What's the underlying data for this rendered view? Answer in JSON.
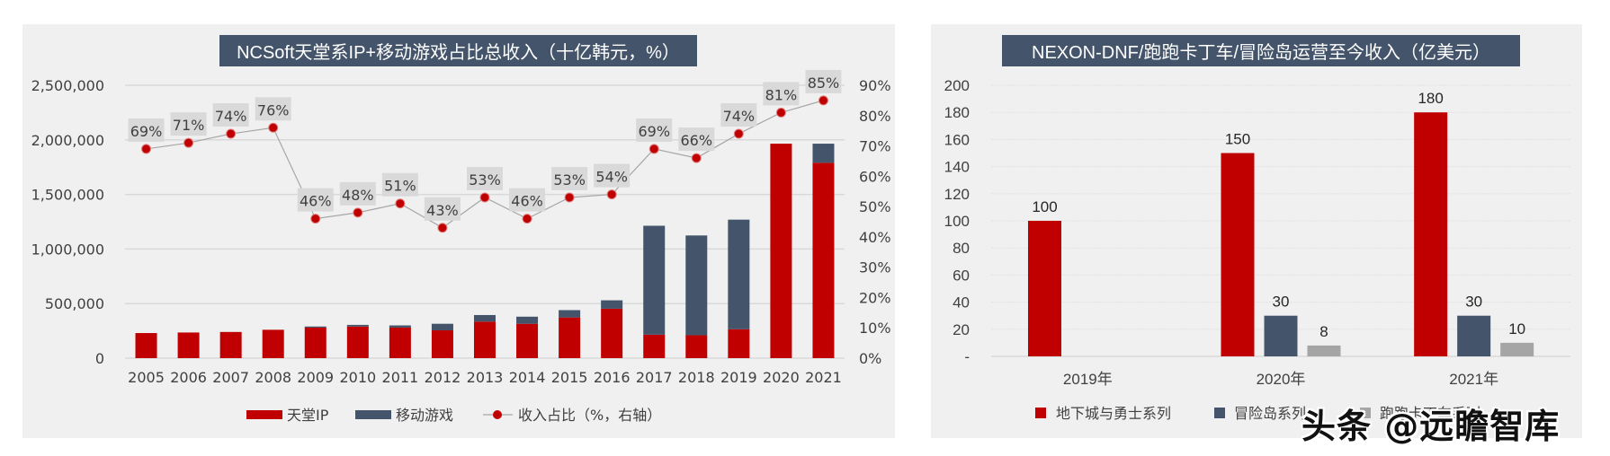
{
  "chart_data": [
    {
      "type": "bar",
      "stacked": true,
      "title": "NCSoft天堂系IP+移动游戏占比总收入（十亿韩元，%）",
      "categories": [
        "2005",
        "2006",
        "2007",
        "2008",
        "2009",
        "2010",
        "2011",
        "2012",
        "2013",
        "2014",
        "2015",
        "2016",
        "2017",
        "2018",
        "2019",
        "2020",
        "2021"
      ],
      "series": [
        {
          "name": "天堂IP",
          "kind": "bar",
          "color": "#c00000",
          "values": [
            230000,
            235000,
            240000,
            260000,
            280000,
            290000,
            280000,
            255000,
            335000,
            315000,
            373000,
            453000,
            215000,
            210000,
            265000,
            1965000,
            1790000
          ]
        },
        {
          "name": "移动游戏",
          "kind": "bar",
          "color": "#44546a",
          "values": [
            0,
            0,
            0,
            0,
            10000,
            15000,
            20000,
            60000,
            60000,
            65000,
            67000,
            77000,
            998000,
            914000,
            1004000,
            0,
            175000
          ]
        },
        {
          "name": "收入占比（%，右轴）",
          "kind": "line",
          "axis": "right",
          "color": "#c00000",
          "values": [
            69,
            71,
            74,
            76,
            46,
            48,
            51,
            43,
            53,
            46,
            53,
            54,
            69,
            66,
            74,
            81,
            85
          ],
          "labels": [
            "69%",
            "71%",
            "74%",
            "76%",
            "46%",
            "48%",
            "51%",
            "43%",
            "53%",
            "46%",
            "53%",
            "54%",
            "69%",
            "66%",
            "74%",
            "81%",
            "85%"
          ]
        }
      ],
      "ylim": [
        0,
        2500000
      ],
      "yticks": [
        "0",
        "500,000",
        "1,000,000",
        "1,500,000",
        "2,000,000",
        "2,500,000"
      ],
      "y2lim": [
        0,
        90
      ],
      "y2ticks": [
        "0%",
        "10%",
        "20%",
        "30%",
        "40%",
        "50%",
        "60%",
        "70%",
        "80%",
        "90%"
      ],
      "grid": true,
      "legend_position": "bottom",
      "legend": [
        "天堂IP",
        "移动游戏",
        "收入占比（%，右轴）"
      ]
    },
    {
      "type": "bar",
      "title": "NEXON-DNF/跑跑卡丁车/冒险岛运营至今收入（亿美元）",
      "categories": [
        "2019年",
        "2020年",
        "2021年"
      ],
      "series": [
        {
          "name": "地下城与勇士系列",
          "color": "#c00000",
          "values": [
            100,
            150,
            180
          ]
        },
        {
          "name": "冒险岛系列",
          "color": "#44546a",
          "values": [
            null,
            30,
            30
          ]
        },
        {
          "name": "跑跑卡丁车系列",
          "color": "#a5a5a5",
          "values": [
            null,
            8,
            10
          ]
        }
      ],
      "ylim": [
        0,
        200
      ],
      "yticks": [
        "-",
        "20",
        "40",
        "60",
        "80",
        "100",
        "120",
        "140",
        "160",
        "180",
        "200"
      ],
      "grid": true,
      "legend_position": "bottom",
      "legend": [
        "地下城与勇士系列",
        "冒险岛系列",
        "跑跑卡丁车系列"
      ]
    }
  ],
  "watermark": "头条 @远瞻智库"
}
